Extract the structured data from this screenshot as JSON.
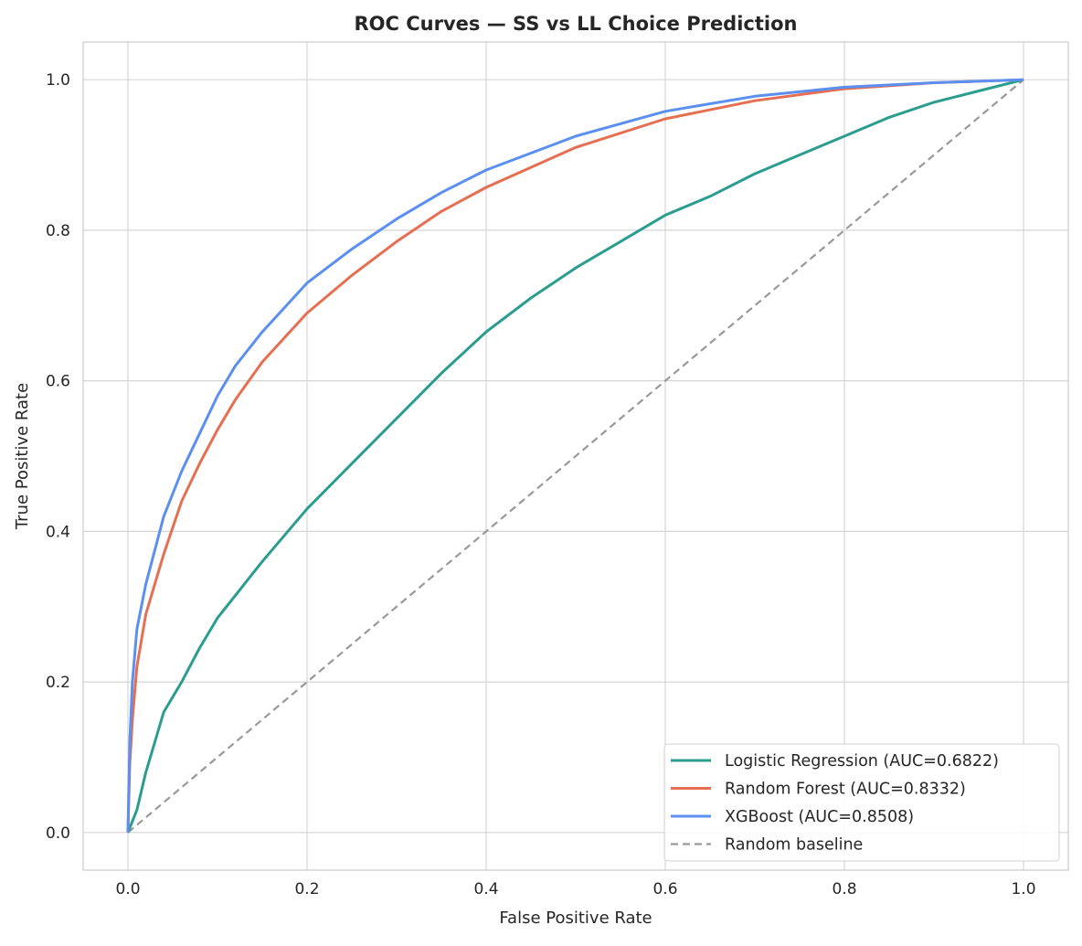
{
  "chart_data": {
    "type": "line",
    "title": "ROC Curves — SS vs LL Choice Prediction",
    "xlabel": "False Positive Rate",
    "ylabel": "True Positive Rate",
    "xlim": [
      -0.05,
      1.05
    ],
    "ylim": [
      -0.05,
      1.05
    ],
    "xticks": [
      0.0,
      0.2,
      0.4,
      0.6,
      0.8,
      1.0
    ],
    "xtick_labels": [
      "0.0",
      "0.2",
      "0.4",
      "0.6",
      "0.8",
      "1.0"
    ],
    "yticks": [
      0.0,
      0.2,
      0.4,
      0.6,
      0.8,
      1.0
    ],
    "ytick_labels": [
      "0.0",
      "0.2",
      "0.4",
      "0.6",
      "0.8",
      "1.0"
    ],
    "grid": true,
    "legend_position": "lower-right",
    "series": [
      {
        "name": "Logistic Regression (AUC=0.6822)",
        "color": "#2a9d8f",
        "style": "solid",
        "x": [
          0,
          0.01,
          0.02,
          0.03,
          0.04,
          0.06,
          0.08,
          0.1,
          0.15,
          0.2,
          0.25,
          0.3,
          0.35,
          0.4,
          0.45,
          0.5,
          0.55,
          0.6,
          0.65,
          0.7,
          0.75,
          0.8,
          0.85,
          0.9,
          0.95,
          1
        ],
        "y": [
          0,
          0.03,
          0.08,
          0.12,
          0.16,
          0.2,
          0.245,
          0.285,
          0.36,
          0.43,
          0.49,
          0.55,
          0.61,
          0.665,
          0.71,
          0.75,
          0.785,
          0.82,
          0.845,
          0.875,
          0.9,
          0.925,
          0.95,
          0.97,
          0.985,
          1
        ]
      },
      {
        "name": "Random Forest (AUC=0.8332)",
        "color": "#e76f51",
        "style": "solid",
        "x": [
          0,
          0.002,
          0.005,
          0.01,
          0.02,
          0.04,
          0.06,
          0.08,
          0.1,
          0.12,
          0.15,
          0.2,
          0.25,
          0.3,
          0.35,
          0.4,
          0.5,
          0.6,
          0.7,
          0.8,
          0.9,
          1
        ],
        "y": [
          0,
          0.09,
          0.15,
          0.22,
          0.29,
          0.37,
          0.44,
          0.49,
          0.535,
          0.575,
          0.625,
          0.69,
          0.74,
          0.785,
          0.825,
          0.857,
          0.91,
          0.948,
          0.972,
          0.988,
          0.996,
          1
        ]
      },
      {
        "name": "XGBoost (AUC=0.8508)",
        "color": "#5b8ff0",
        "style": "solid",
        "x": [
          0,
          0.002,
          0.005,
          0.01,
          0.02,
          0.04,
          0.06,
          0.08,
          0.1,
          0.12,
          0.15,
          0.2,
          0.25,
          0.3,
          0.35,
          0.4,
          0.5,
          0.6,
          0.7,
          0.8,
          0.9,
          1
        ],
        "y": [
          0,
          0.12,
          0.2,
          0.27,
          0.33,
          0.42,
          0.48,
          0.53,
          0.58,
          0.62,
          0.665,
          0.73,
          0.775,
          0.815,
          0.85,
          0.88,
          0.925,
          0.958,
          0.978,
          0.99,
          0.996,
          1
        ]
      },
      {
        "name": "Random baseline",
        "color": "#999999",
        "style": "dashed",
        "x": [
          0,
          1
        ],
        "y": [
          0,
          1
        ]
      }
    ]
  }
}
